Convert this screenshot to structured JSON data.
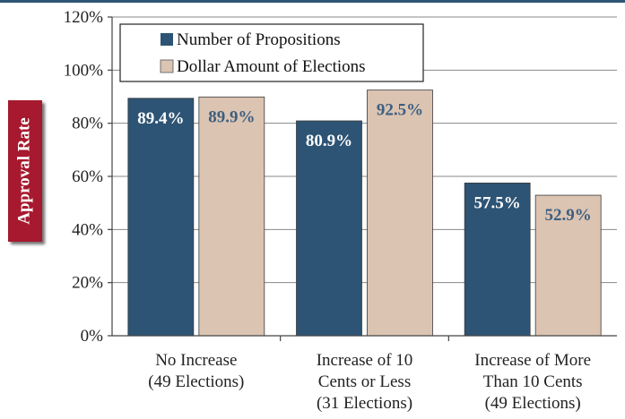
{
  "chart_data": {
    "type": "bar",
    "ylabel": "Approval Rate",
    "ylim": [
      0,
      120
    ],
    "yticks": [
      "0%",
      "20%",
      "40%",
      "60%",
      "80%",
      "100%",
      "120%"
    ],
    "categories": [
      [
        "No Increase",
        "(49 Elections)"
      ],
      [
        "Increase of 10",
        "Cents or Less",
        "(31 Elections)"
      ],
      [
        "Increase of More",
        "Than 10 Cents",
        "(49 Elections)"
      ]
    ],
    "series": [
      {
        "name": "Number of Propositions",
        "color": "#2d5474",
        "label_color": "#ffffff",
        "values": [
          89.4,
          80.9,
          57.5
        ],
        "labels": [
          "89.4%",
          "80.9%",
          "57.5%"
        ]
      },
      {
        "name": "Dollar Amount of Elections",
        "color": "#dcc4b2",
        "label_color": "#3b5f80",
        "values": [
          89.9,
          92.5,
          52.9
        ],
        "labels": [
          "89.9%",
          "92.5%",
          "52.9%"
        ]
      }
    ],
    "legend_position": "top-left",
    "grid": true
  }
}
